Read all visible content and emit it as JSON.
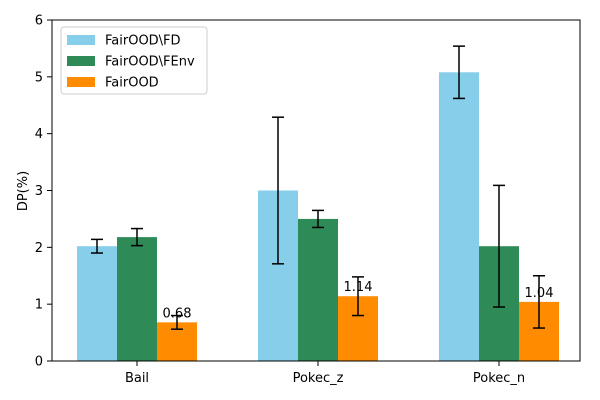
{
  "chart_data": {
    "type": "bar",
    "title": "",
    "xlabel": "",
    "ylabel": "DP(%)",
    "ylim": [
      0,
      6
    ],
    "yticks": [
      0,
      1,
      2,
      3,
      4,
      5,
      6
    ],
    "grid": false,
    "legend_position": "upper-left",
    "categories": [
      "Bail",
      "Pokec_z",
      "Pokec_n"
    ],
    "series": [
      {
        "name": "FairOOD\\FD",
        "color": "#87ceeb",
        "values": [
          2.02,
          3.0,
          5.08
        ],
        "errors": [
          0.12,
          1.29,
          0.46
        ],
        "labels": [
          "",
          "",
          ""
        ]
      },
      {
        "name": "FairOOD\\FEnv",
        "color": "#2e8b57",
        "values": [
          2.18,
          2.5,
          2.02
        ],
        "errors": [
          0.15,
          0.15,
          1.07
        ],
        "labels": [
          "",
          "",
          ""
        ]
      },
      {
        "name": "FairOOD",
        "color": "#ff8c00",
        "values": [
          0.68,
          1.14,
          1.04
        ],
        "errors": [
          0.12,
          0.34,
          0.46
        ],
        "labels": [
          "0.68",
          "1.14",
          "1.04"
        ]
      }
    ]
  }
}
